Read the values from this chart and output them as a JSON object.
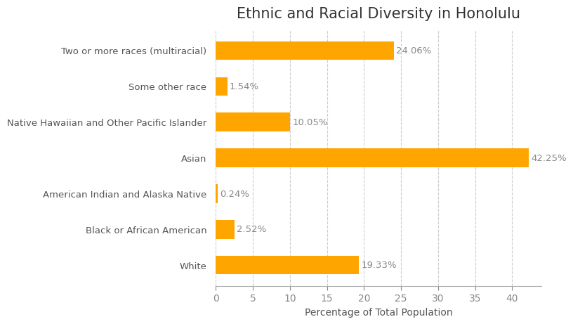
{
  "title": "Ethnic and Racial Diversity in Honolulu",
  "xlabel": "Percentage of Total Population",
  "categories": [
    "Two or more races (multiracial)",
    "Some other race",
    "Native Hawaiian and Other Pacific Islander",
    "Asian",
    "American Indian and Alaska Native",
    "Black or African American",
    "White"
  ],
  "values": [
    24.06,
    1.54,
    10.05,
    42.25,
    0.24,
    2.52,
    19.33
  ],
  "labels": [
    "24.06%",
    "1.54%",
    "10.05%",
    "42.25%",
    "0.24%",
    "2.52%",
    "19.33%"
  ],
  "bar_color": "#FFA500",
  "label_color": "#888888",
  "title_color": "#333333",
  "axis_label_color": "#555555",
  "ytick_color": "#555555",
  "xtick_color": "#888888",
  "grid_color": "#cccccc",
  "background_color": "#ffffff",
  "xlim": [
    0,
    44
  ],
  "xticks": [
    0,
    5,
    10,
    15,
    20,
    25,
    30,
    35,
    40
  ],
  "title_fontsize": 15,
  "label_fontsize": 9.5,
  "ytick_fontsize": 9.5,
  "xtick_fontsize": 10,
  "xlabel_fontsize": 10,
  "bar_height": 0.52
}
